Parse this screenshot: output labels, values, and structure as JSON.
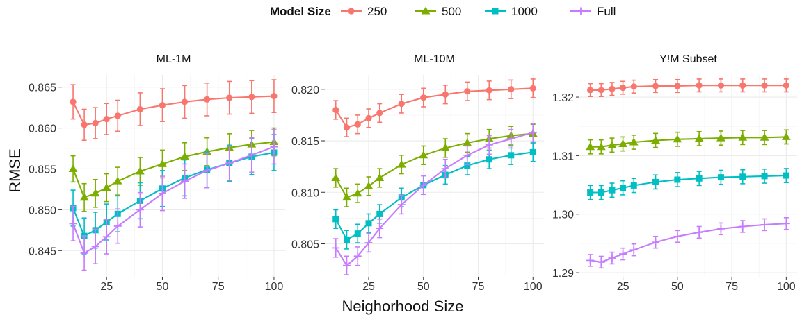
{
  "legend": {
    "title": "Model Size",
    "entries": [
      {
        "label": "250",
        "color": "#F8766D",
        "shape": "circle"
      },
      {
        "label": "500",
        "color": "#7CAE00",
        "shape": "triangle"
      },
      {
        "label": "1000",
        "color": "#00BFC4",
        "shape": "square"
      },
      {
        "label": "Full",
        "color": "#C77CFF",
        "shape": "plus"
      }
    ]
  },
  "axes": {
    "xlabel": "Neighorhood Size",
    "ylabel": "RMSE"
  },
  "chart_data": [
    {
      "type": "line",
      "title": "ML-1M",
      "x": [
        10,
        15,
        20,
        25,
        30,
        40,
        50,
        60,
        70,
        80,
        90,
        100
      ],
      "xlim": [
        5,
        105
      ],
      "xticks": [
        25,
        50,
        75,
        100
      ],
      "ylim": [
        0.8418,
        0.8665
      ],
      "yticks": [
        0.845,
        0.85,
        0.855,
        0.86,
        0.865
      ],
      "ytick_labels": [
        "0.845",
        "0.850",
        "0.855",
        "0.860",
        "0.865"
      ],
      "series": [
        {
          "name": "250",
          "values": [
            0.8632,
            0.8604,
            0.8606,
            0.8611,
            0.8615,
            0.8623,
            0.8628,
            0.8632,
            0.8635,
            0.8637,
            0.8638,
            0.8639
          ],
          "errors": [
            0.0021,
            0.0019,
            0.0019,
            0.0019,
            0.0019,
            0.002,
            0.002,
            0.002,
            0.002,
            0.002,
            0.002,
            0.002
          ]
        },
        {
          "name": "500",
          "values": [
            0.855,
            0.8515,
            0.852,
            0.8527,
            0.8535,
            0.8547,
            0.8556,
            0.8565,
            0.8571,
            0.8576,
            0.858,
            0.8583
          ],
          "errors": [
            0.0016,
            0.0017,
            0.0017,
            0.0017,
            0.0017,
            0.0017,
            0.0017,
            0.0017,
            0.0017,
            0.0017,
            0.0017,
            0.0017
          ]
        },
        {
          "name": "1000",
          "values": [
            0.8502,
            0.8468,
            0.8475,
            0.8485,
            0.8495,
            0.8511,
            0.8526,
            0.8539,
            0.8549,
            0.8557,
            0.8565,
            0.857
          ],
          "errors": [
            0.0022,
            0.0022,
            0.0022,
            0.0022,
            0.0022,
            0.0022,
            0.0022,
            0.0022,
            0.0022,
            0.0022,
            0.0022,
            0.0022
          ]
        },
        {
          "name": "Full",
          "values": [
            0.8483,
            0.8447,
            0.8455,
            0.8467,
            0.848,
            0.85,
            0.852,
            0.8535,
            0.8548,
            0.8557,
            0.8567,
            0.8577
          ],
          "errors": [
            0.0021,
            0.0021,
            0.0021,
            0.0021,
            0.0021,
            0.0021,
            0.0021,
            0.0021,
            0.0021,
            0.0021,
            0.0021,
            0.0021
          ]
        }
      ]
    },
    {
      "type": "line",
      "title": "ML-10M",
      "x": [
        10,
        15,
        20,
        25,
        30,
        40,
        50,
        60,
        70,
        80,
        90,
        100
      ],
      "xlim": [
        5,
        105
      ],
      "xticks": [
        25,
        50,
        75,
        100
      ],
      "ylim": [
        0.8018,
        0.8214
      ],
      "yticks": [
        0.805,
        0.81,
        0.815,
        0.82
      ],
      "ytick_labels": [
        "0.805",
        "0.810",
        "0.815",
        "0.820"
      ],
      "series": [
        {
          "name": "250",
          "values": [
            0.818,
            0.8163,
            0.8166,
            0.8172,
            0.8177,
            0.8186,
            0.8192,
            0.8195,
            0.8198,
            0.8199,
            0.82,
            0.8201
          ],
          "errors": [
            0.0009,
            0.0009,
            0.0009,
            0.0009,
            0.0009,
            0.0009,
            0.0009,
            0.0009,
            0.0009,
            0.0009,
            0.0009,
            0.0009
          ]
        },
        {
          "name": "500",
          "values": [
            0.8114,
            0.8095,
            0.8099,
            0.8106,
            0.8114,
            0.8127,
            0.8136,
            0.8143,
            0.8148,
            0.8152,
            0.8155,
            0.8157
          ],
          "errors": [
            0.0009,
            0.0009,
            0.0009,
            0.0009,
            0.0009,
            0.0009,
            0.0009,
            0.0009,
            0.0009,
            0.0009,
            0.0009,
            0.0009
          ]
        },
        {
          "name": "1000",
          "values": [
            0.8074,
            0.8054,
            0.806,
            0.807,
            0.8079,
            0.8095,
            0.8107,
            0.8117,
            0.8126,
            0.8132,
            0.8136,
            0.8139
          ],
          "errors": [
            0.0009,
            0.0009,
            0.0009,
            0.0009,
            0.0009,
            0.0009,
            0.0009,
            0.0009,
            0.0009,
            0.0009,
            0.0009,
            0.0009
          ]
        },
        {
          "name": "Full",
          "values": [
            0.8046,
            0.8029,
            0.8038,
            0.8051,
            0.8065,
            0.8088,
            0.8107,
            0.8123,
            0.8136,
            0.8146,
            0.8152,
            0.8158
          ],
          "errors": [
            0.0009,
            0.0009,
            0.0009,
            0.0009,
            0.0009,
            0.0009,
            0.0009,
            0.0009,
            0.0009,
            0.0009,
            0.0009,
            0.0009
          ]
        }
      ]
    },
    {
      "type": "line",
      "title": "Y!M Subset",
      "x": [
        10,
        15,
        20,
        25,
        30,
        40,
        50,
        60,
        70,
        80,
        90,
        100
      ],
      "xlim": [
        5,
        105
      ],
      "xticks": [
        25,
        50,
        75,
        100
      ],
      "ylim": [
        1.2893,
        1.3238
      ],
      "yticks": [
        1.29,
        1.3,
        1.31,
        1.32
      ],
      "ytick_labels": [
        "1.29",
        "1.30",
        "1.31",
        "1.32"
      ],
      "series": [
        {
          "name": "250",
          "values": [
            1.3212,
            1.3212,
            1.3214,
            1.3216,
            1.3218,
            1.3219,
            1.3219,
            1.322,
            1.322,
            1.322,
            1.322,
            1.322
          ],
          "errors": [
            0.0011,
            0.0011,
            0.0011,
            0.0011,
            0.0011,
            0.0011,
            0.0011,
            0.0011,
            0.0011,
            0.0011,
            0.0011,
            0.0011
          ]
        },
        {
          "name": "500",
          "values": [
            1.3115,
            1.3115,
            1.3118,
            1.312,
            1.3123,
            1.3126,
            1.3128,
            1.3129,
            1.313,
            1.3131,
            1.3131,
            1.3132
          ],
          "errors": [
            0.0012,
            0.0012,
            0.0012,
            0.0012,
            0.0012,
            0.0012,
            0.0012,
            0.0012,
            0.0012,
            0.0012,
            0.0012,
            0.0012
          ]
        },
        {
          "name": "1000",
          "values": [
            1.3037,
            1.3037,
            1.3041,
            1.3045,
            1.3049,
            1.3055,
            1.3059,
            1.3061,
            1.3063,
            1.3064,
            1.3065,
            1.3066
          ],
          "errors": [
            0.0012,
            0.0012,
            0.0012,
            0.0012,
            0.0012,
            0.0012,
            0.0012,
            0.0012,
            0.0012,
            0.0012,
            0.0012,
            0.0012
          ]
        },
        {
          "name": "Full",
          "values": [
            1.2921,
            1.2918,
            1.2925,
            1.2932,
            1.2939,
            1.2952,
            1.2962,
            1.2969,
            1.2975,
            1.2979,
            1.2982,
            1.2984
          ],
          "errors": [
            0.001,
            0.001,
            0.001,
            0.001,
            0.001,
            0.001,
            0.001,
            0.001,
            0.001,
            0.001,
            0.001,
            0.001
          ]
        }
      ]
    }
  ]
}
